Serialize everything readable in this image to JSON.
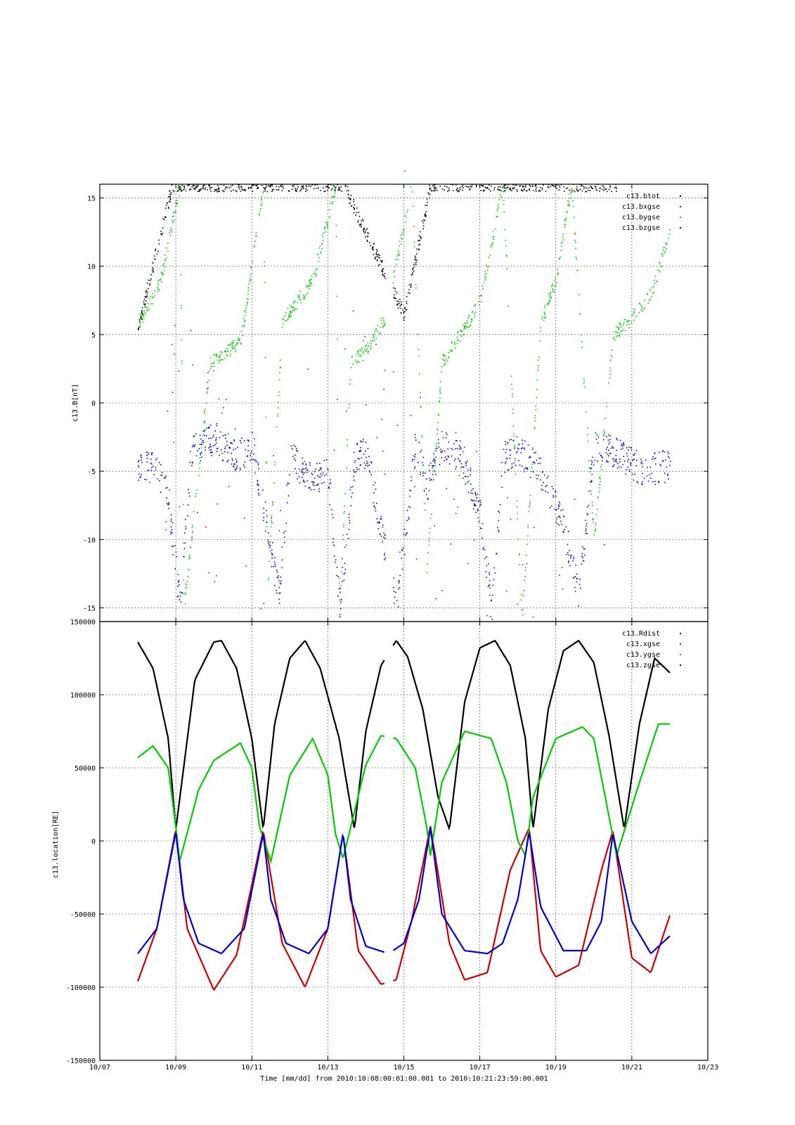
{
  "figure": {
    "top_title": "-",
    "xlabel": "Time [mm/dd]  from 2010:10:08:00:01:00.001  to  2010:10:21:23:59:00.001"
  },
  "colors": {
    "btot": "#000000",
    "red": "#cc0000",
    "green": "#00cc00",
    "blue": "#0000cc"
  },
  "chart_data": [
    {
      "type": "scatter",
      "ylabel": "c13.B[nT]",
      "x_ticks": [
        "10/07",
        "10/09",
        "10/11",
        "10/13",
        "10/15",
        "10/17",
        "10/19",
        "10/21",
        "10/23"
      ],
      "xlim": [
        "10/07",
        "10/23"
      ],
      "ylim": [
        -16,
        16
      ],
      "y_ticks": [
        -15,
        -10,
        -5,
        0,
        5,
        10,
        15
      ],
      "grid": true,
      "legend_position": "top-right",
      "series": [
        {
          "name": "c13.btot",
          "color": "#000000",
          "shape": "sawtooth-dots",
          "x_days": [
            0,
            0.9,
            3.4,
            5.4,
            7.0,
            7.7,
            10.3,
            12.6
          ],
          "y": [
            5.5,
            16,
            16,
            16,
            6.5,
            16,
            16,
            16
          ]
        },
        {
          "name": "c13.bxgse",
          "color": "#cc0000",
          "shape": "sparse-dots",
          "x_days": [
            0,
            1,
            3.3,
            5.5,
            7.9,
            10.2,
            12.4
          ],
          "y": [
            -5,
            0,
            -12,
            2,
            -9,
            -14,
            -15
          ]
        },
        {
          "name": "c13.bygse",
          "color": "#00cc00",
          "shape": "sawtooth-dots",
          "x_days": [
            0,
            0.6,
            1.1,
            1.2,
            1.9,
            2.7,
            3.3,
            3.4,
            3.8,
            4.6,
            5.2,
            5.3,
            5.6,
            6.0,
            6.6,
            6.7,
            7.2,
            7.6,
            8.0,
            8.7,
            9.0,
            9.6,
            10.1,
            10.6,
            11.0,
            11.4,
            12.0,
            12.5,
            12.9,
            13.5,
            14.0
          ],
          "y": [
            5.8,
            9,
            16,
            -15,
            3,
            4.5,
            16,
            -14,
            6,
            9,
            16,
            -15,
            3,
            3.8,
            6.8,
            9,
            16,
            -12,
            3,
            6,
            7.5,
            16,
            -16,
            6,
            9,
            16,
            -10,
            5,
            6,
            8,
            12.5
          ]
        },
        {
          "name": "c13.bzgse",
          "color": "#0000cc",
          "shape": "noisy-dots",
          "x_days": [
            0,
            0.4,
            0.8,
            1.1,
            1.4,
            2.0,
            2.6,
            3.0,
            3.4,
            3.7,
            4.0,
            4.6,
            5.0,
            5.3,
            5.7,
            6.0,
            6.8,
            7.3,
            7.6,
            8.0,
            8.5,
            9.0,
            9.3,
            9.6,
            10.0,
            10.6,
            11.2,
            11.6,
            12.0,
            12.4,
            12.8,
            13.3,
            14.0
          ],
          "y": [
            -5,
            -4,
            -7,
            -15,
            -3.5,
            -2.5,
            -4,
            -3,
            -9,
            -14,
            -4,
            -5.5,
            -5,
            -15,
            -4,
            -3.5,
            -15,
            -3,
            -6,
            -3,
            -4,
            -8,
            -15,
            -4,
            -3.5,
            -5,
            -9,
            -14,
            -3,
            -3.5,
            -4,
            -5,
            -4.5
          ]
        }
      ]
    },
    {
      "type": "scatter",
      "ylabel": "c13.location[RE]",
      "x_ticks": [
        "10/07",
        "10/09",
        "10/11",
        "10/13",
        "10/15",
        "10/17",
        "10/19",
        "10/21",
        "10/23"
      ],
      "xlim": [
        "10/07",
        "10/23"
      ],
      "ylim": [
        -150000,
        150000
      ],
      "y_ticks": [
        -150000,
        -100000,
        -50000,
        0,
        50000,
        100000,
        150000
      ],
      "grid": true,
      "legend_position": "top-right",
      "series": [
        {
          "name": "c13.Rdist",
          "color": "#000000",
          "shape": "orbit-curve",
          "x_days": [
            0,
            0.4,
            0.8,
            1.0,
            1.5,
            2.0,
            2.2,
            2.6,
            3.0,
            3.3,
            3.6,
            4.0,
            4.4,
            4.8,
            5.3,
            5.7,
            6.0,
            6.4,
            6.8,
            7.1,
            7.5,
            7.9,
            8.2,
            8.6,
            9.0,
            9.4,
            9.8,
            10.2,
            10.4,
            10.8,
            11.2,
            11.6,
            12.0,
            12.4,
            12.8,
            13.2,
            13.6,
            14.0
          ],
          "y": [
            136000,
            118000,
            70000,
            8000,
            110000,
            136000,
            137000,
            118000,
            70000,
            8000,
            80000,
            125000,
            137000,
            118000,
            70000,
            8000,
            75000,
            120000,
            137000,
            126000,
            90000,
            30000,
            8000,
            95000,
            132000,
            137000,
            120000,
            70000,
            8000,
            90000,
            130000,
            137000,
            122000,
            72000,
            8000,
            80000,
            125000,
            115000
          ]
        },
        {
          "name": "c13.xgse",
          "color": "#cc0000",
          "shape": "orbit-curve",
          "x_days": [
            0,
            0.5,
            1.0,
            1.3,
            2.0,
            2.6,
            3.0,
            3.3,
            3.8,
            4.4,
            5.0,
            5.4,
            5.8,
            6.4,
            6.8,
            7.2,
            7.7,
            8.2,
            8.6,
            9.2,
            9.8,
            10.3,
            10.6,
            11.0,
            11.6,
            12.2,
            12.5,
            13.0,
            13.5,
            14.0
          ],
          "y": [
            -96000,
            -60000,
            8000,
            -60000,
            -102000,
            -78000,
            -30000,
            7000,
            -70000,
            -100000,
            -60000,
            5000,
            -75000,
            -98000,
            -95000,
            -55000,
            10000,
            -70000,
            -95000,
            -90000,
            -20000,
            9000,
            -75000,
            -93000,
            -85000,
            -20000,
            7000,
            -80000,
            -90000,
            -51000
          ]
        },
        {
          "name": "c13.ygse",
          "color": "#00cc00",
          "shape": "orbit-curve",
          "x_days": [
            0,
            0.4,
            0.8,
            1.0,
            1.1,
            1.6,
            2.0,
            2.7,
            3.0,
            3.2,
            3.5,
            4.0,
            4.6,
            5.0,
            5.2,
            5.4,
            6.0,
            6.4,
            6.8,
            7.3,
            7.6,
            7.7,
            8.0,
            8.6,
            9.3,
            9.7,
            10.0,
            10.2,
            10.4,
            11.0,
            11.7,
            12.0,
            12.3,
            12.6,
            13.2,
            13.7,
            14.0
          ],
          "y": [
            57000,
            65000,
            50000,
            10000,
            -14000,
            35000,
            55000,
            67000,
            50000,
            10000,
            -14000,
            45000,
            70000,
            45000,
            5000,
            -12000,
            52000,
            72000,
            70000,
            50000,
            10000,
            -10000,
            40000,
            75000,
            70000,
            40000,
            0,
            -10000,
            30000,
            70000,
            78000,
            70000,
            30000,
            -10000,
            40000,
            80000,
            80000
          ]
        },
        {
          "name": "c13.zgse",
          "color": "#0000cc",
          "shape": "orbit-curve",
          "x_days": [
            0,
            0.5,
            1.0,
            1.2,
            1.6,
            2.2,
            2.8,
            3.3,
            3.5,
            3.9,
            4.5,
            5.0,
            5.4,
            5.6,
            6.0,
            6.6,
            7.0,
            7.4,
            7.7,
            8.0,
            8.6,
            9.2,
            9.6,
            10.0,
            10.3,
            10.6,
            11.2,
            11.8,
            12.2,
            12.5,
            13.0,
            13.5,
            14.0
          ],
          "y": [
            -77000,
            -60000,
            6000,
            -40000,
            -70000,
            -77000,
            -60000,
            5000,
            -40000,
            -70000,
            -77000,
            -60000,
            5000,
            -40000,
            -72000,
            -77000,
            -70000,
            -40000,
            9000,
            -50000,
            -75000,
            -77000,
            -70000,
            -40000,
            6000,
            -45000,
            -75000,
            -75000,
            -55000,
            5000,
            -55000,
            -77000,
            -65000
          ]
        }
      ]
    }
  ]
}
